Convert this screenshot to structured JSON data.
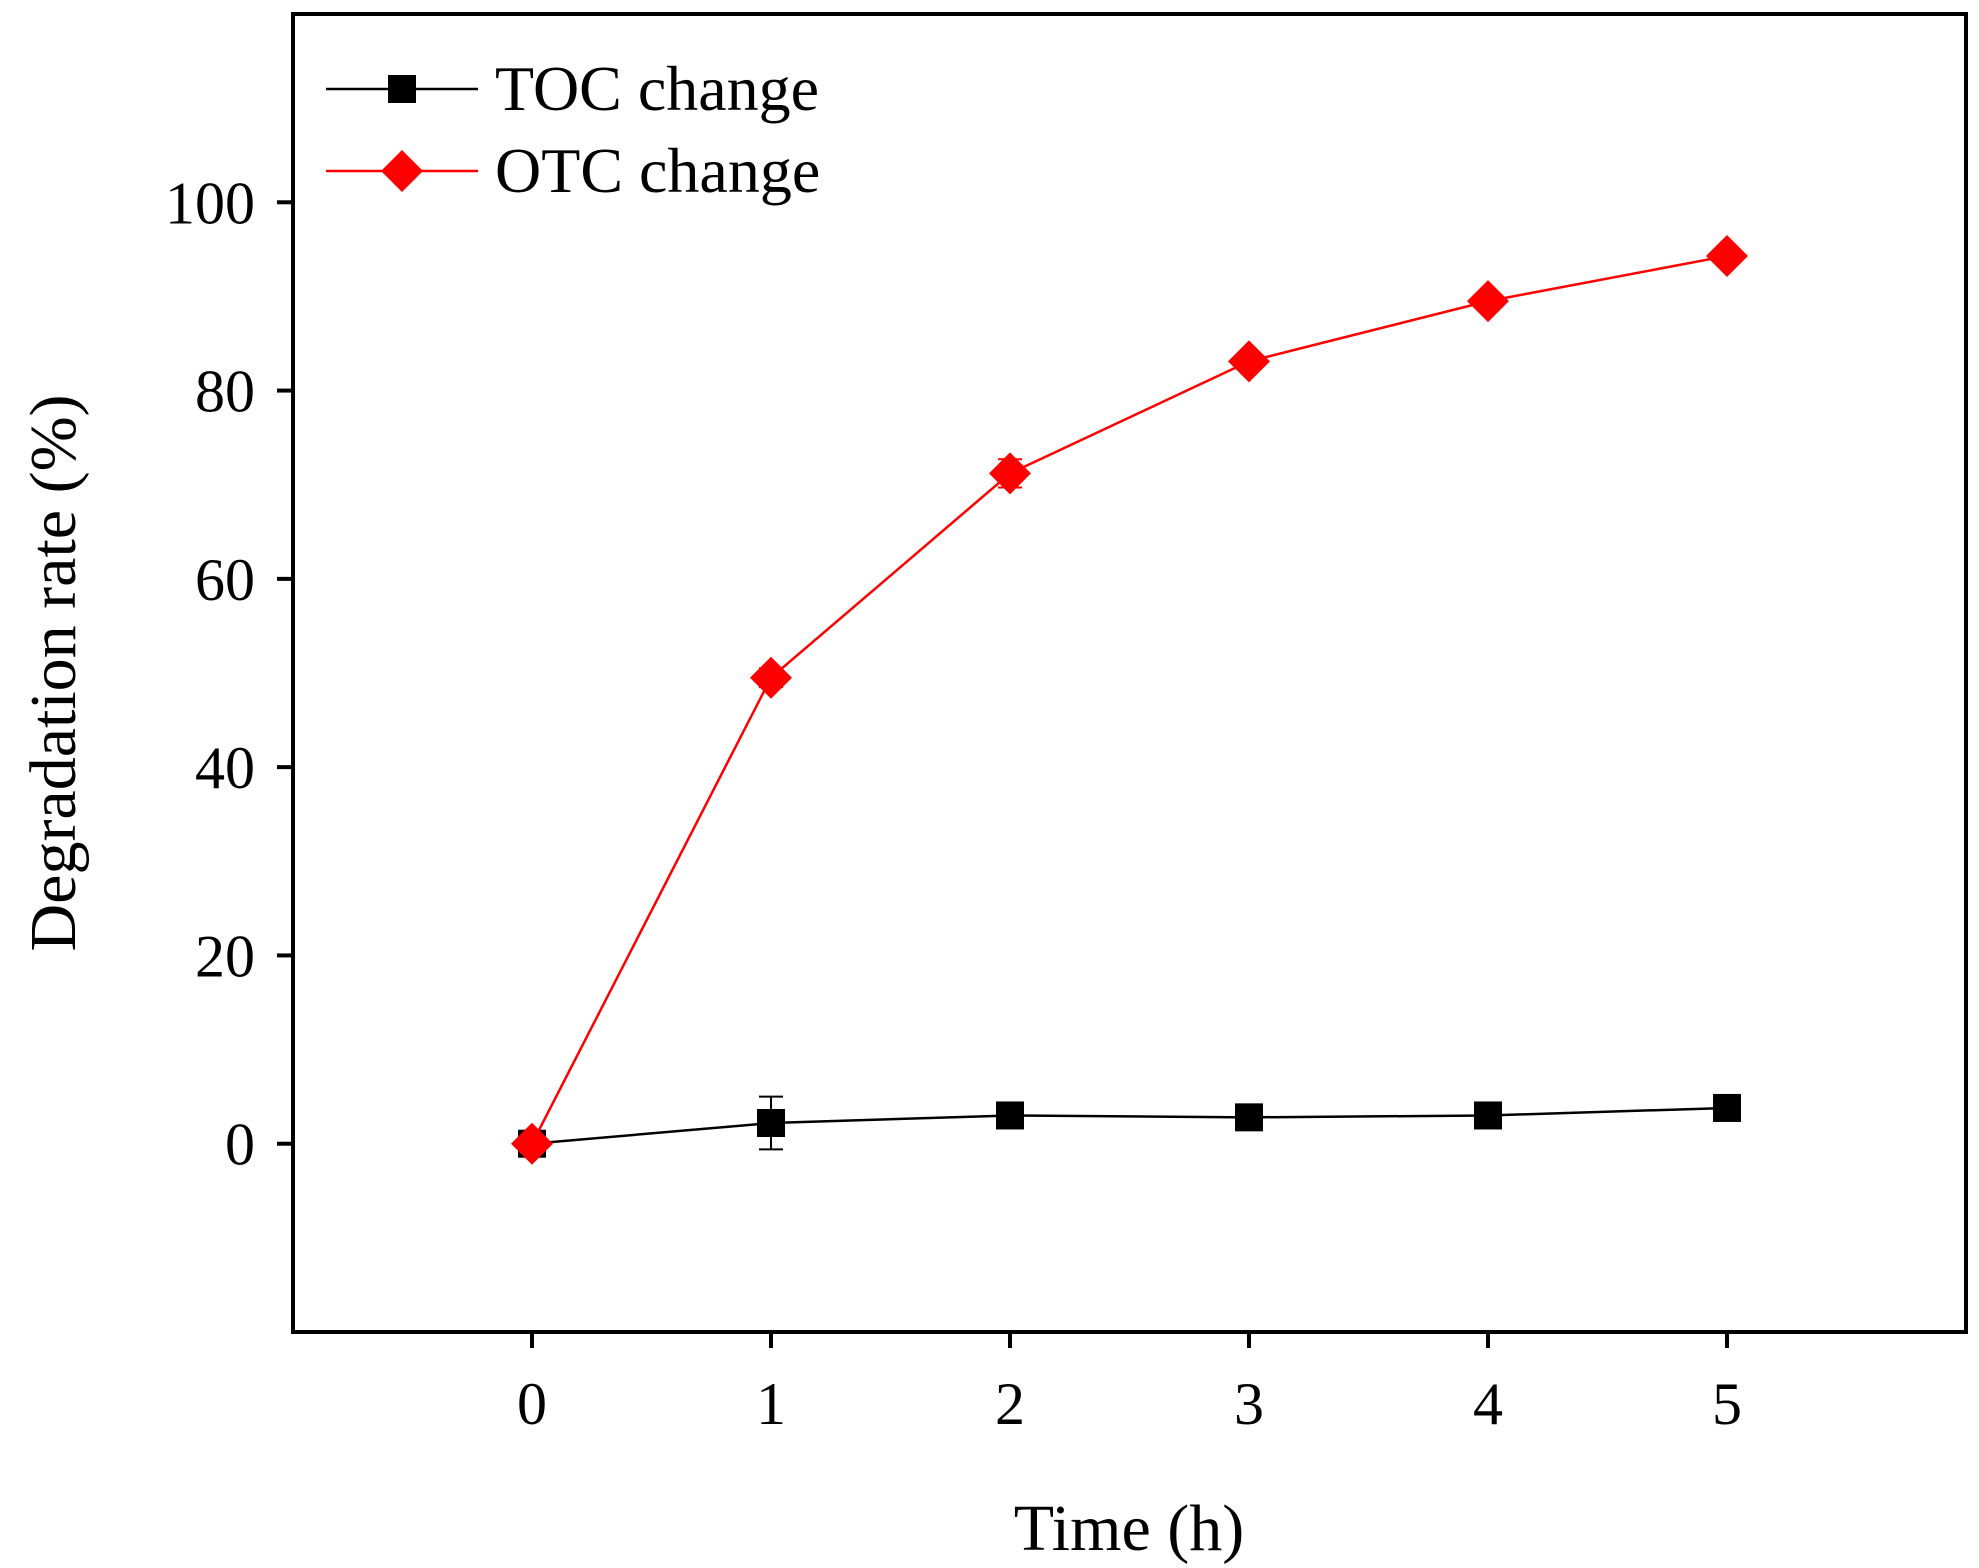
{
  "chart_data": {
    "type": "line",
    "title": "",
    "xlabel": "Time (h)",
    "ylabel": "Degradation rate (%)",
    "xlim": [
      -1,
      6
    ],
    "ylim": [
      -20,
      120
    ],
    "xticks": [
      0,
      1,
      2,
      3,
      4,
      5
    ],
    "yticks": [
      0,
      20,
      40,
      60,
      80,
      100
    ],
    "grid": false,
    "legend_position": "top-left",
    "x": [
      0,
      1,
      2,
      3,
      4,
      5
    ],
    "series": [
      {
        "name": "TOC change",
        "color": "#000000",
        "marker": "square",
        "values": [
          0,
          2.2,
          3.0,
          2.8,
          3.0,
          3.8
        ],
        "errors": [
          0.5,
          2.8,
          0.6,
          0.8,
          0.6,
          0.6
        ]
      },
      {
        "name": "OTC change",
        "color": "#ff0000",
        "marker": "diamond",
        "values": [
          0,
          49.5,
          71.2,
          83.1,
          89.5,
          94.3
        ],
        "errors": [
          0.4,
          1.0,
          1.5,
          0.8,
          0.6,
          0.4
        ]
      }
    ]
  }
}
